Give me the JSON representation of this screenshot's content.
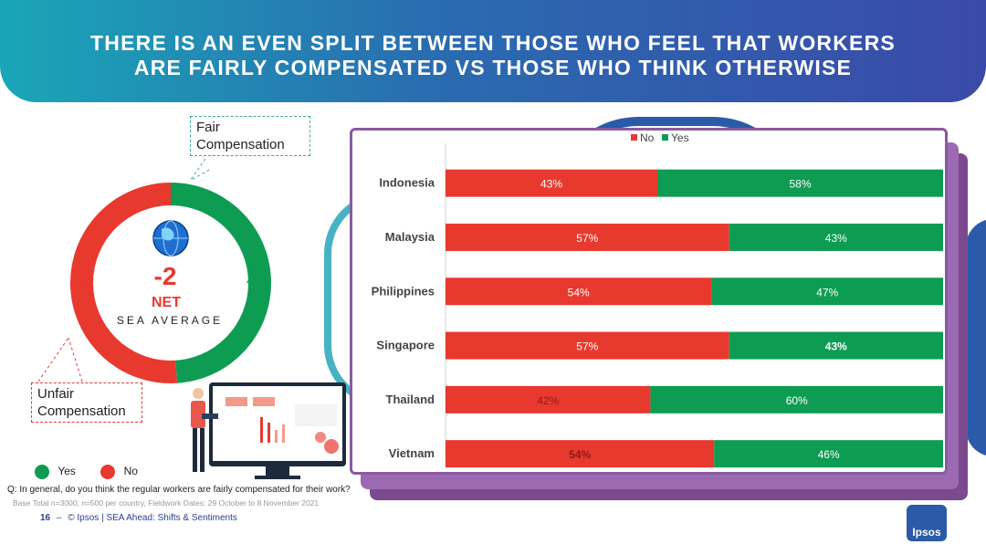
{
  "header": {
    "title_line1": "THERE IS AN EVEN SPLIT BETWEEN THOSE WHO FEEL THAT WORKERS",
    "title_line2": "ARE FAIRLY COMPENSATED VS THOSE WHO THINK OTHERWISE"
  },
  "donut": {
    "yes_value": 49,
    "no_value": 51,
    "yes_label": "49%",
    "no_label": "51%",
    "net_value": "-2",
    "net_label": "NET",
    "region_label": "SEA AVERAGE",
    "callout_fair": "Fair Compensation",
    "callout_unfair": "Unfair Compensation",
    "yes_color": "#0e9c52",
    "no_color": "#e8392f",
    "globe_icon": "globe-icon"
  },
  "legend_bottom": {
    "yes": "Yes",
    "no": "No"
  },
  "chart_data": {
    "type": "bar",
    "orientation": "horizontal-stacked",
    "categories": [
      "Indonesia",
      "Malaysia",
      "Philippines",
      "Singapore",
      "Thailand",
      "Vietnam"
    ],
    "series": [
      {
        "name": "No",
        "values": [
          43,
          57,
          54,
          57,
          42,
          54
        ],
        "labels": [
          "43%",
          "57%",
          "54%",
          "57%",
          "42%",
          "54%"
        ],
        "color": "#e8392f"
      },
      {
        "name": "Yes",
        "values": [
          58,
          43,
          47,
          43,
          60,
          46
        ],
        "labels": [
          "58%",
          "43%",
          "47%",
          "43%",
          "60%",
          "46%"
        ],
        "color": "#0e9c52"
      }
    ],
    "legend_position": "top",
    "grid": false
  },
  "footer": {
    "question": "Q: In general, do you think the regular workers are fairly compensated for their work?",
    "base": "Base Total n=3000; n=500 per country, Fieldwork Dates: 29 October to 8 November  2021",
    "page_number": "16",
    "page_sep": "–",
    "source": "© Ipsos | SEA Ahead: Shifts & Sentiments",
    "logo_text": "Ipsos"
  }
}
